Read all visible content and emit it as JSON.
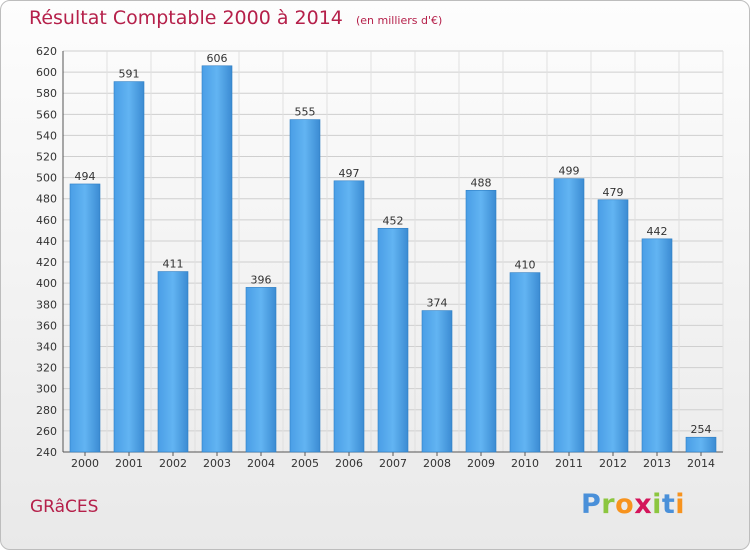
{
  "title": "Résultat Comptable 2000 à 2014",
  "subtitle": "(en milliers d'€)",
  "commune": "GRâCES",
  "logo": {
    "letters": [
      "P",
      "r",
      "o",
      "x",
      "i",
      "t",
      "i"
    ],
    "colors": [
      "#4a90d9",
      "#8cc63f",
      "#f7931e",
      "#d4145a",
      "#8cc63f",
      "#4a90d9",
      "#f7931e"
    ]
  },
  "colors": {
    "bar": "#3d8fd6",
    "bar_light": "#5aaef0",
    "title": "#b5204a"
  },
  "chart_data": {
    "type": "bar",
    "categories": [
      "2000",
      "2001",
      "2002",
      "2003",
      "2004",
      "2005",
      "2006",
      "2007",
      "2008",
      "2009",
      "2010",
      "2011",
      "2012",
      "2013",
      "2014"
    ],
    "values": [
      494,
      591,
      411,
      606,
      396,
      555,
      497,
      452,
      374,
      488,
      410,
      499,
      479,
      442,
      254
    ],
    "ylim": [
      240,
      620
    ],
    "yticks": [
      240,
      260,
      280,
      300,
      320,
      340,
      360,
      380,
      400,
      420,
      440,
      460,
      480,
      500,
      520,
      540,
      560,
      580,
      600,
      620
    ],
    "grid": true
  }
}
